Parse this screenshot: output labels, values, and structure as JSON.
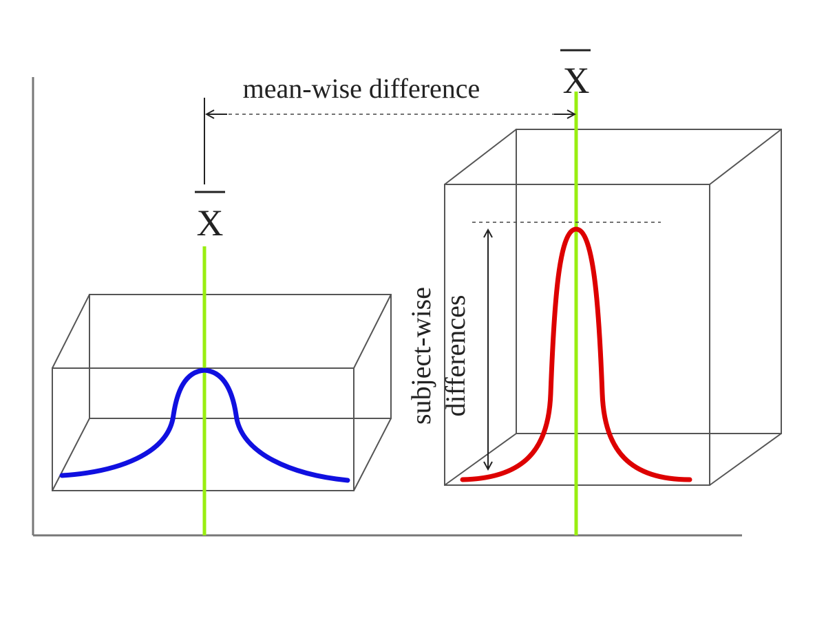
{
  "labels": {
    "mean_wise": "mean-wise difference",
    "subject_wise_line1": "subject-wise",
    "subject_wise_line2": "differences",
    "mean_symbol_left": "X",
    "mean_symbol_right": "X"
  },
  "colors": {
    "left_curve": "#1010e0",
    "right_curve": "#dd0000",
    "mean_line": "#99ee11",
    "box_edges": "#555555",
    "axes": "#777777"
  }
}
